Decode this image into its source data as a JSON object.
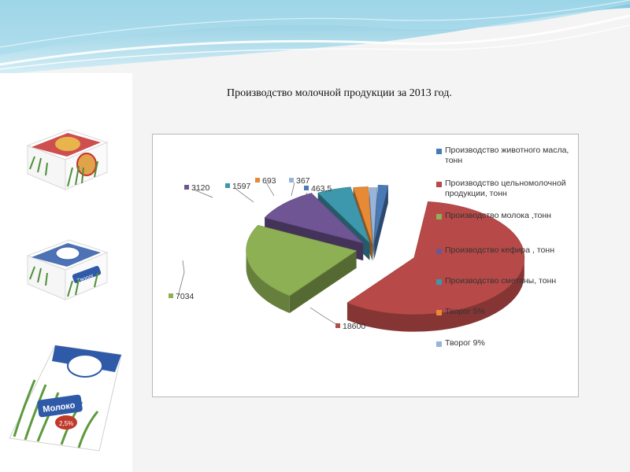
{
  "slide": {
    "title": "Производство молочной продукции за 2013 год."
  },
  "products": [
    {
      "name": "butter-box",
      "label": ""
    },
    {
      "name": "tvorog-box",
      "label": "Творог"
    },
    {
      "name": "milk-pack",
      "label": "Молоко",
      "sublabel": "2,5%"
    }
  ],
  "chart_data": {
    "type": "pie",
    "style": "3d-exploded",
    "title": "",
    "legend_position": "right",
    "series": [
      {
        "name": "Производство животного масла, тонн",
        "value": 463.5,
        "label": "463,5",
        "color": "#4a7ab5"
      },
      {
        "name": "Производство цельномолочной продукции, тонн",
        "value": 18600,
        "label": "18600",
        "color": "#b74a48"
      },
      {
        "name": "Производство молока ,тонн",
        "value": 7034,
        "label": "7034",
        "color": "#8db054"
      },
      {
        "name": "Производство кефира , тонн",
        "value": 3120,
        "label": "3120",
        "color": "#6f5594"
      },
      {
        "name": "Производство сметаны, тонн",
        "value": 1597,
        "label": "1597",
        "color": "#3d97ad"
      },
      {
        "name": "Творог 5%",
        "value": 693,
        "label": "693",
        "color": "#e68a35"
      },
      {
        "name": "Творог 9%",
        "value": 367,
        "label": "367",
        "color": "#98b4da"
      }
    ]
  }
}
